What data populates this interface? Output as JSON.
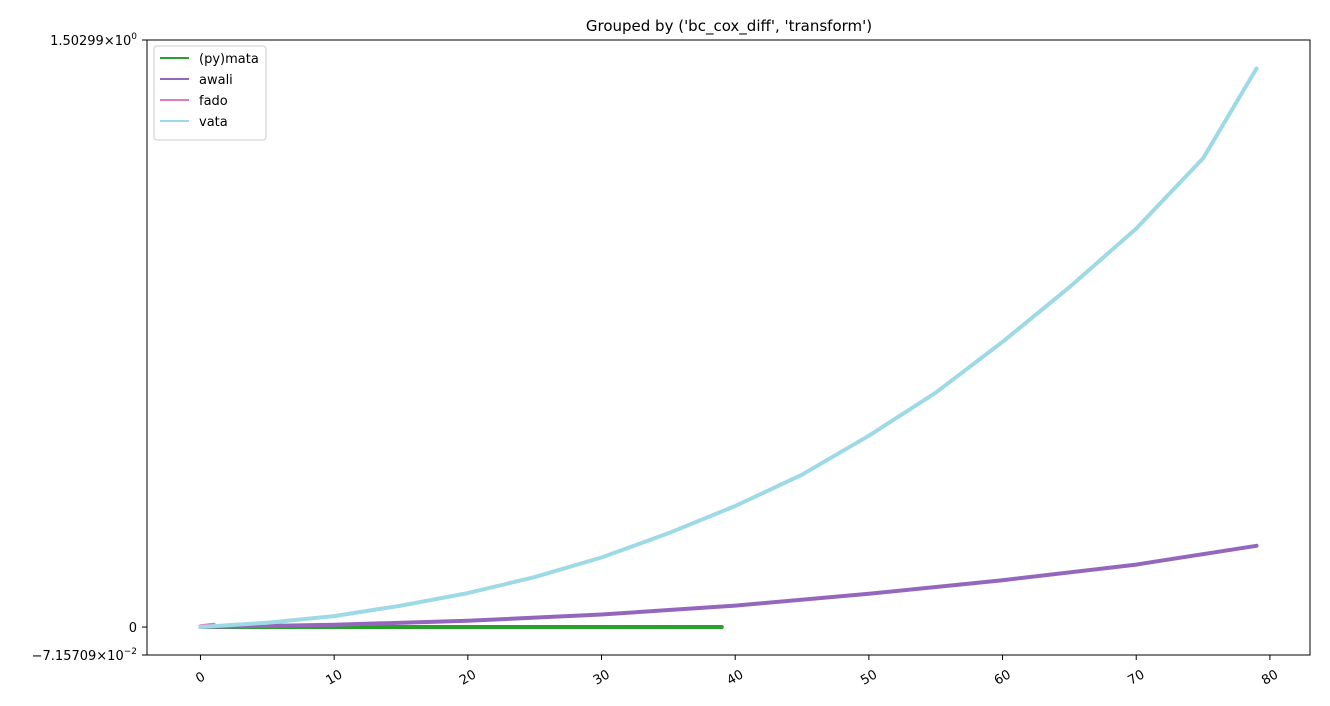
{
  "chart_data": {
    "type": "line",
    "title": "Grouped by ('bc_cox_diff', 'transform')",
    "xlabel": "",
    "ylabel": "",
    "xlim": [
      -4,
      83
    ],
    "ylim": [
      -0.0715709,
      1.50299
    ],
    "x_ticks": [
      0,
      10,
      20,
      30,
      40,
      50,
      60,
      70,
      80
    ],
    "y_ticks": [
      {
        "value": 1.50299,
        "mantissa": "1.50299",
        "exponent": "0"
      },
      {
        "value": 0,
        "label": "0"
      },
      {
        "value": -0.0715709,
        "mantissa": "−7.15709",
        "exponent": "−2"
      }
    ],
    "y_tick_times": "×10",
    "grid": false,
    "legend_position": "top-left",
    "series": [
      {
        "name": "(py)mata",
        "color": "#2ca02c",
        "x": [
          0,
          5,
          10,
          15,
          20,
          25,
          30,
          35,
          39
        ],
        "y": [
          0,
          0,
          0,
          0,
          0,
          0,
          0,
          0,
          0
        ]
      },
      {
        "name": "awali",
        "color": "#9467bd",
        "x": [
          0,
          10,
          20,
          30,
          40,
          50,
          60,
          70,
          79
        ],
        "y": [
          0,
          0.006,
          0.016,
          0.032,
          0.055,
          0.085,
          0.12,
          0.16,
          0.208
        ]
      },
      {
        "name": "fado",
        "color": "#e377c2",
        "x": [
          0,
          0.5,
          1
        ],
        "y": [
          0.002,
          0.004,
          0.006
        ]
      },
      {
        "name": "vata",
        "color": "#9edae5",
        "x": [
          0,
          5,
          10,
          15,
          20,
          25,
          30,
          35,
          40,
          45,
          50,
          55,
          60,
          65,
          70,
          75,
          79
        ],
        "y": [
          0,
          0.011,
          0.028,
          0.055,
          0.087,
          0.128,
          0.178,
          0.24,
          0.31,
          0.39,
          0.49,
          0.6,
          0.73,
          0.87,
          1.02,
          1.2,
          1.43
        ]
      }
    ]
  }
}
